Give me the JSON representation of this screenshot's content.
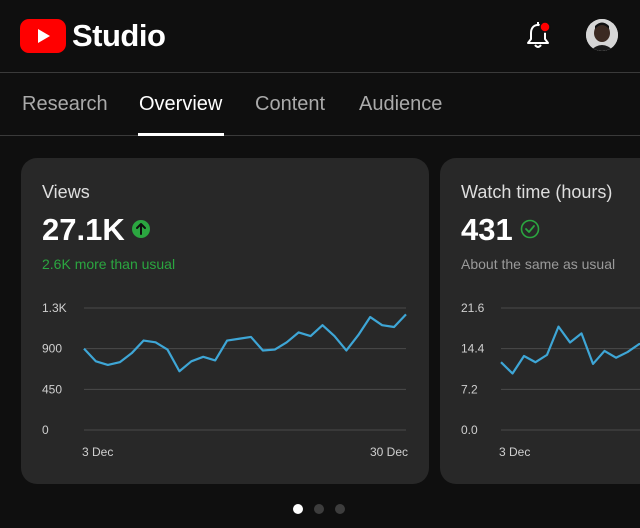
{
  "header": {
    "logo_text": "Studio",
    "bell": {
      "icon": "bell-icon",
      "has_notification": true,
      "badge_color": "#ff0000"
    },
    "avatar": {
      "icon": "user-avatar"
    }
  },
  "tabs": [
    {
      "label": "Research",
      "active": false
    },
    {
      "label": "Overview",
      "active": true
    },
    {
      "label": "Content",
      "active": false
    },
    {
      "label": "Audience",
      "active": false
    }
  ],
  "cards": [
    {
      "title": "Views",
      "value": "27.1K",
      "status_icon": "arrow-up-circle-icon",
      "status_color": "#2ba640",
      "subtitle": "2.6K more than usual",
      "chart_data": {
        "type": "line",
        "x": [
          "3 Dec",
          "4 Dec",
          "5 Dec",
          "6 Dec",
          "7 Dec",
          "8 Dec",
          "9 Dec",
          "10 Dec",
          "11 Dec",
          "12 Dec",
          "13 Dec",
          "14 Dec",
          "15 Dec",
          "16 Dec",
          "17 Dec",
          "18 Dec",
          "19 Dec",
          "20 Dec",
          "21 Dec",
          "22 Dec",
          "23 Dec",
          "24 Dec",
          "25 Dec",
          "26 Dec",
          "27 Dec",
          "28 Dec",
          "29 Dec",
          "30 Dec"
        ],
        "series": [
          {
            "values": [
              900,
              760,
              720,
              750,
              850,
              990,
              970,
              890,
              650,
              760,
              810,
              770,
              990,
              1010,
              1030,
              880,
              890,
              970,
              1080,
              1040,
              1160,
              1040,
              880,
              1050,
              1250,
              1160,
              1140,
              1280
            ],
            "color": "#3ea6d6"
          }
        ],
        "yticks": [
          "0",
          "450",
          "900",
          "1.3K"
        ],
        "ylim": [
          0,
          1350
        ],
        "xtick_labels": [
          "3 Dec",
          "30 Dec"
        ],
        "grid": true
      }
    },
    {
      "title": "Watch time (hours)",
      "value": "431",
      "status_icon": "check-circle-icon",
      "status_color": "#2ba640",
      "subtitle": "About the same as usual",
      "chart_data": {
        "type": "line",
        "x": [
          "3 Dec",
          "4 Dec",
          "5 Dec",
          "6 Dec",
          "7 Dec",
          "8 Dec",
          "9 Dec",
          "10 Dec",
          "11 Dec",
          "12 Dec",
          "13 Dec",
          "14 Dec",
          "15 Dec",
          "16 Dec"
        ],
        "series": [
          {
            "values": [
              12.0,
              10.0,
              13.1,
              12.0,
              13.3,
              18.3,
              15.5,
              17.1,
              11.7,
              14.0,
              12.8,
              13.8,
              15.2,
              15.5
            ],
            "color": "#3ea6d6"
          }
        ],
        "yticks": [
          "0.0",
          "7.2",
          "14.4",
          "21.6"
        ],
        "ylim": [
          0,
          21.6
        ],
        "xtick_labels": [
          "3 Dec"
        ],
        "grid": true
      }
    }
  ],
  "pager": {
    "count": 3,
    "active_index": 0
  }
}
